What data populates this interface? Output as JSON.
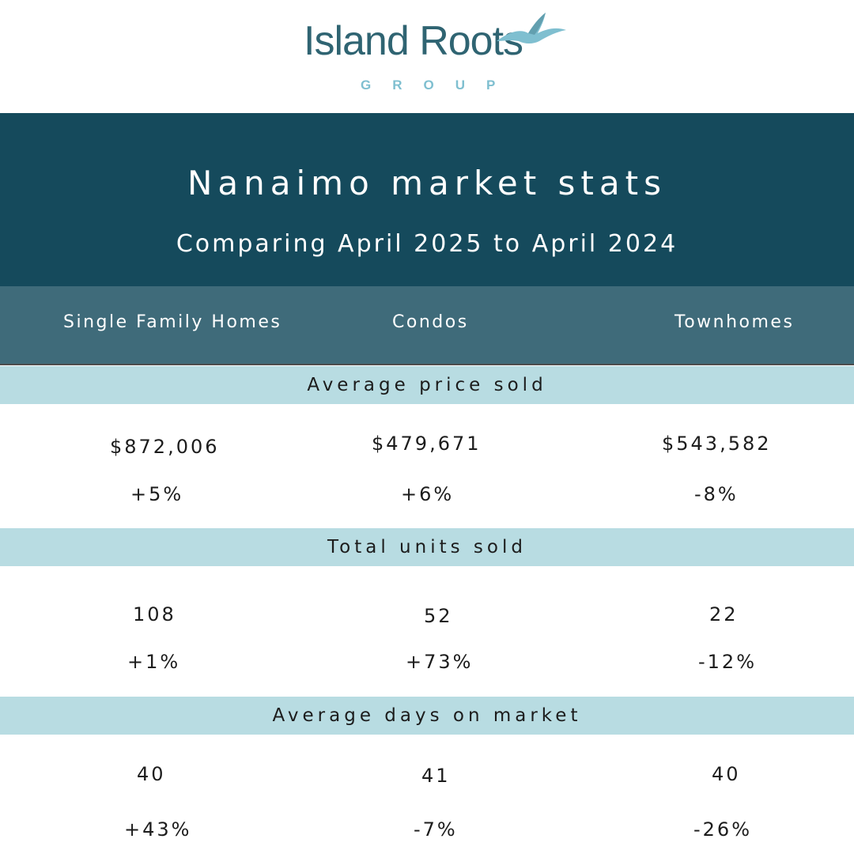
{
  "brand": {
    "name": "Island Roots",
    "group": "GROUP",
    "icon": "seagull-icon",
    "colors": {
      "primary": "#2f6472",
      "accent": "#7fbfd0"
    }
  },
  "header": {
    "title": "Nanaimo market stats",
    "subtitle": "Comparing April 2025 to April 2024"
  },
  "columns": [
    "Single Family Homes",
    "Condos",
    "Townhomes"
  ],
  "sections": [
    {
      "label": "Average price sold",
      "values": [
        "$872,006",
        "$479,671",
        "$543,582"
      ],
      "changes": [
        "+5%",
        "+6%",
        "-8%"
      ]
    },
    {
      "label": "Total units sold",
      "values": [
        "108",
        "52",
        "22"
      ],
      "changes": [
        "+1%",
        "+73%",
        "-12%"
      ]
    },
    {
      "label": "Average days on market",
      "values": [
        "40",
        "41",
        "40"
      ],
      "changes": [
        "+43%",
        "-7%",
        "-26%"
      ]
    }
  ],
  "colors": {
    "header_bg": "#154a5c",
    "column_bar_bg": "#3f6b7a",
    "section_band_bg": "#b8dce2"
  }
}
